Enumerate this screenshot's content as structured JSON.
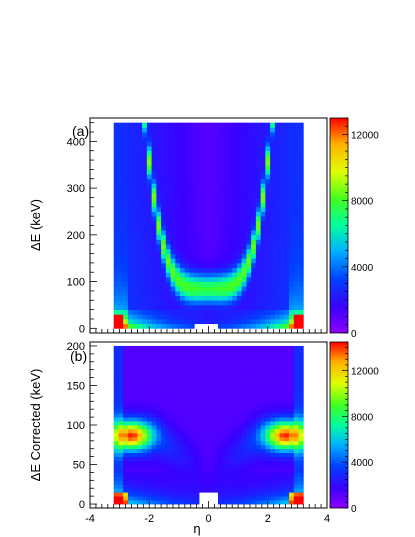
{
  "chart_data": [
    {
      "type": "heatmap",
      "panel_label": "(a)",
      "ylabel": "ΔE (keV)",
      "xlim": [
        -4,
        4
      ],
      "ylim": [
        -10,
        450
      ],
      "x_ticks": [
        -4,
        -2,
        0,
        2,
        4
      ],
      "y_ticks": [
        0,
        100,
        200,
        300,
        400
      ],
      "z_range": [
        0,
        13000
      ],
      "colorbar_ticks": [
        0,
        4000,
        8000,
        12000
      ],
      "colorbar_tick_labels": [
        "0",
        "4000",
        "8000",
        "12000"
      ],
      "data_extent": {
        "x": [
          -3.2,
          3.2
        ],
        "y": [
          0,
          440
        ]
      },
      "features": {
        "band_curve": "ΔE ≈ 85 + 17·η⁴ keV (parabola-like band, minimum near 80 keV at η=0)",
        "band_peak_counts": 8000,
        "background_counts_center": 1000,
        "edge_hotspot": {
          "eta": [
            -3.1,
            3.1
          ],
          "dE": [
            10,
            30
          ],
          "counts": 12500
        },
        "low_dE_row_counts_range": [
          1500,
          11000
        ],
        "gap": {
          "eta": [
            -0.5,
            0.3
          ],
          "dE": [
            0,
            10
          ]
        }
      }
    },
    {
      "type": "heatmap",
      "panel_label": "(b)",
      "xlabel": "η",
      "ylabel": "ΔE Corrected (keV)",
      "xlim": [
        -4,
        4
      ],
      "ylim": [
        -5,
        205
      ],
      "x_ticks": [
        -4,
        -2,
        0,
        2,
        4
      ],
      "x_tick_labels": [
        "-4",
        "-2",
        "0",
        "2",
        "4"
      ],
      "y_ticks": [
        0,
        50,
        100,
        150,
        200
      ],
      "z_range": [
        0,
        14500
      ],
      "colorbar_ticks": [
        0,
        4000,
        8000,
        12000
      ],
      "colorbar_tick_labels": [
        "0",
        "4000",
        "8000",
        "12000"
      ],
      "data_extent": {
        "x": [
          -3.2,
          3.2
        ],
        "y": [
          0,
          200
        ]
      },
      "features": {
        "lobes": {
          "eta_center": [
            -2.6,
            2.6
          ],
          "dE_center": 87,
          "counts": 12000
        },
        "bottom_hotspots": {
          "eta": [
            -3.0,
            3.0
          ],
          "dE": [
            0,
            10
          ],
          "counts": 14000
        },
        "central_region_counts": 1200,
        "gap": {
          "eta": [
            -0.3,
            0.3
          ],
          "dE": [
            0,
            15
          ]
        }
      }
    }
  ]
}
